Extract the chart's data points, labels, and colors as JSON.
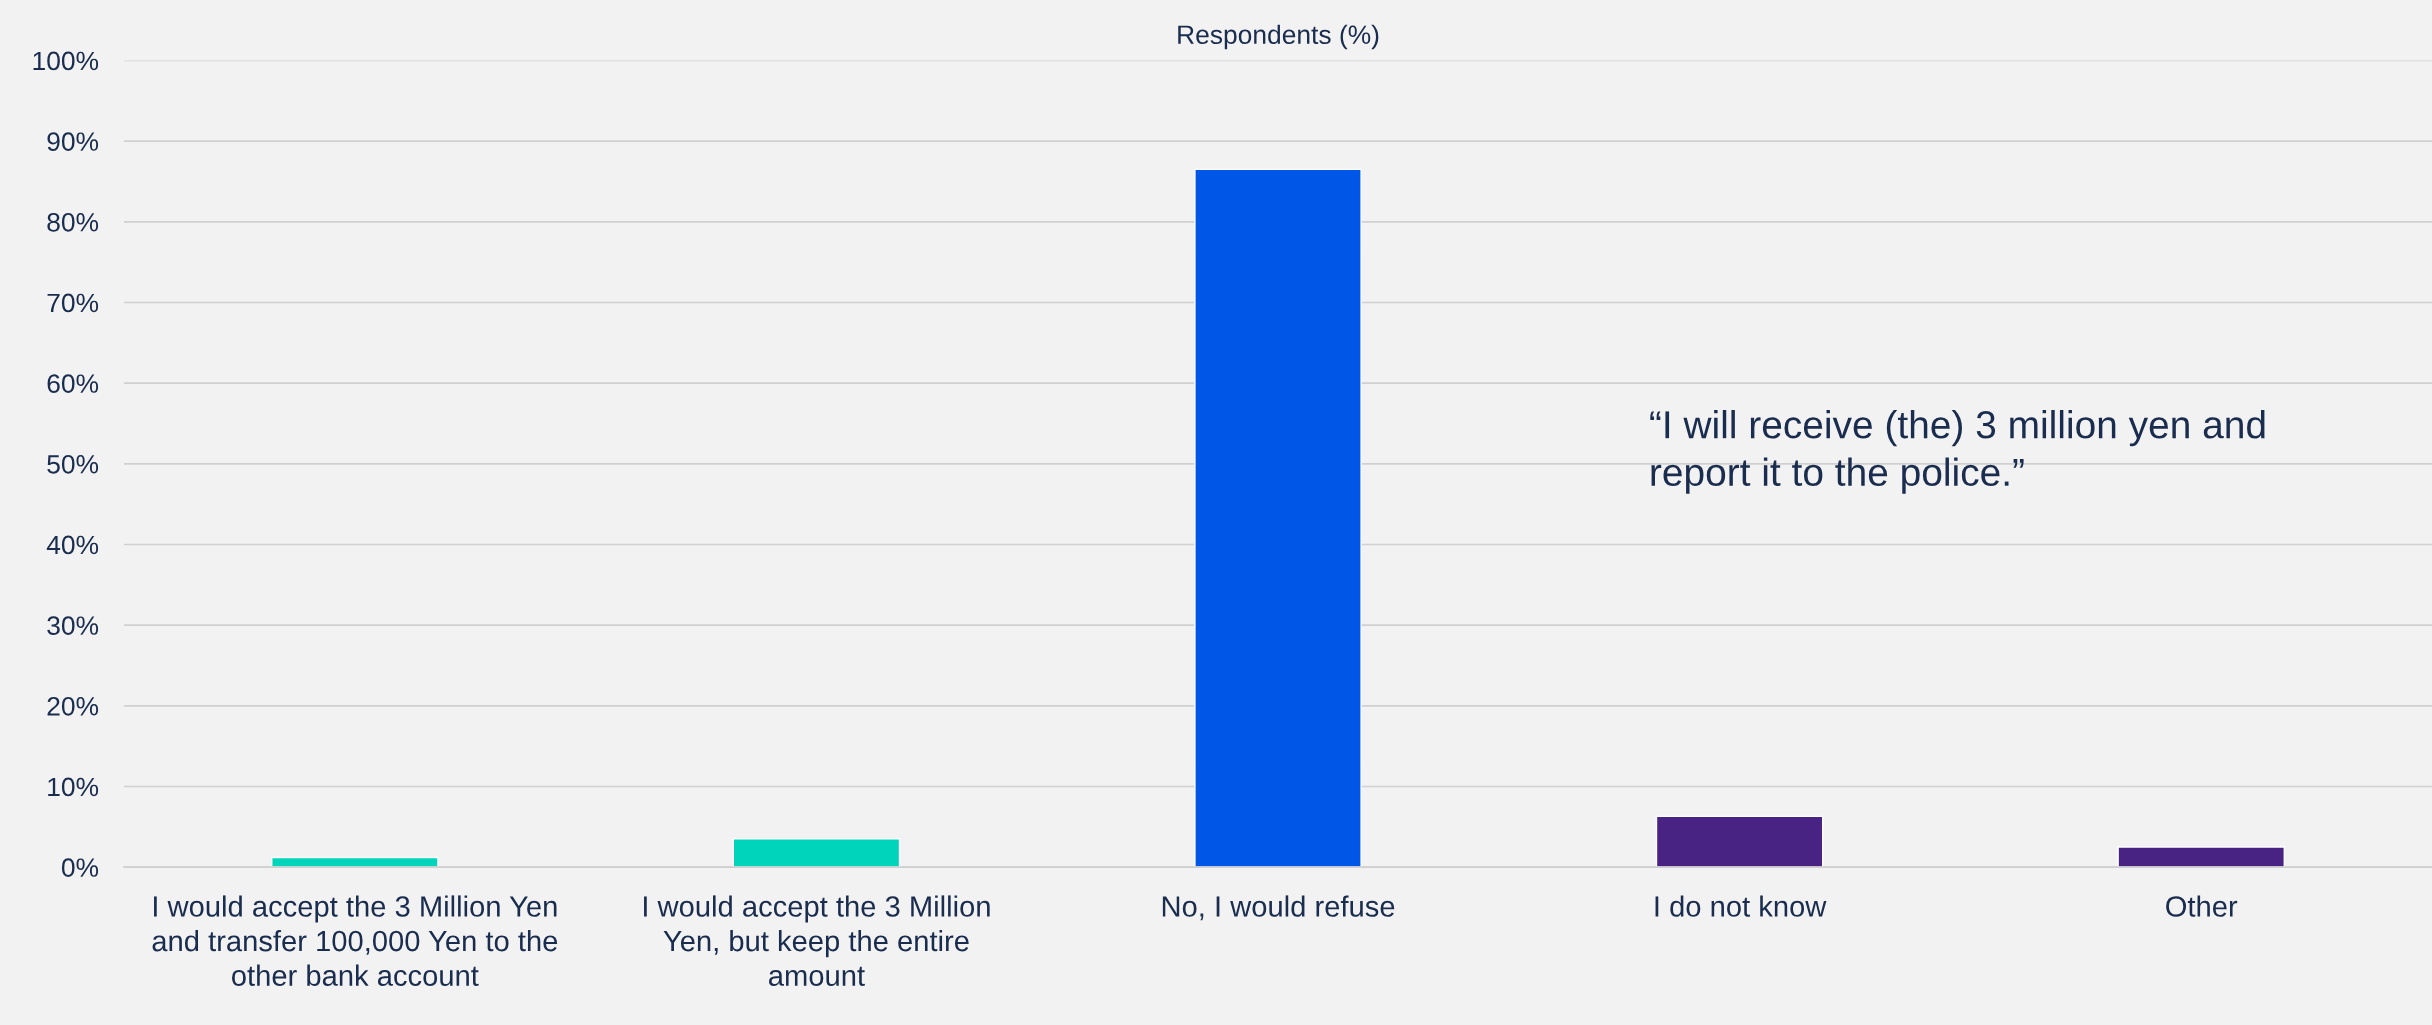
{
  "chart_data": {
    "type": "bar",
    "title": "Respondents (%)",
    "categories": [
      "I would accept the 3 Million Yen and transfer 100,000 Yen to the other bank account",
      "I would accept the 3 Million Yen, but keep the entire amount",
      "No, I would refuse",
      "I do not know",
      "Other"
    ],
    "values": [
      1.2,
      3.5,
      86.5,
      6.3,
      2.5
    ],
    "colors": [
      "#00d4bb",
      "#00d4bb",
      "#0057e7",
      "#482383",
      "#482383"
    ],
    "ylim": [
      0,
      100
    ],
    "yticks": [
      {
        "value": 0,
        "label": "0%"
      },
      {
        "value": 10,
        "label": "10%"
      },
      {
        "value": 20,
        "label": "20%"
      },
      {
        "value": 30,
        "label": "30%"
      },
      {
        "value": 40,
        "label": "40%"
      },
      {
        "value": 50,
        "label": "50%"
      },
      {
        "value": 60,
        "label": "60%"
      },
      {
        "value": 70,
        "label": "70%"
      },
      {
        "value": 80,
        "label": "80%"
      },
      {
        "value": 90,
        "label": "90%"
      },
      {
        "value": 100,
        "label": "100%"
      }
    ],
    "grid": "y",
    "annotations": [
      "“I will receive (the) 3 million yen and report it to the police.”"
    ]
  }
}
